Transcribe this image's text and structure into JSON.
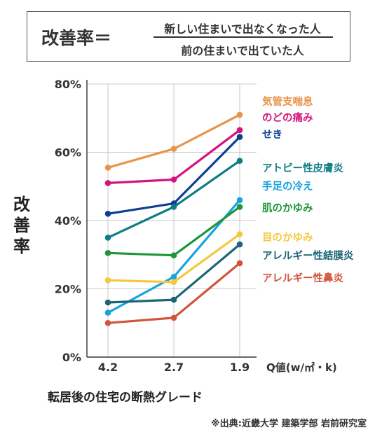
{
  "formula": {
    "lhs": "改善率＝",
    "numerator": "新しい住まいで出なくなった人",
    "denominator": "前の住まいで出ていた人"
  },
  "colors": {
    "axis": "#333333",
    "grid": "#bbbbbb"
  },
  "chart_data": {
    "type": "line",
    "title": "",
    "ylabel": "改善率",
    "xlabel": "転居後の住宅の断熱グレード",
    "x_unit_label": "Q値(w/㎡・k)",
    "categories": [
      "4.2",
      "2.7",
      "1.9"
    ],
    "ylim": [
      0,
      80
    ],
    "yticks": [
      0,
      20,
      40,
      60,
      80
    ],
    "ytick_labels": [
      "0%",
      "20%",
      "40%",
      "60%",
      "80%"
    ],
    "grid": true,
    "legend": "right",
    "series": [
      {
        "name": "気管支喘息",
        "color": "#E8944A",
        "values": [
          55.5,
          61,
          71
        ]
      },
      {
        "name": "のどの痛み",
        "color": "#D4147E",
        "values": [
          51,
          52,
          66.5
        ]
      },
      {
        "name": "せき",
        "color": "#0E3F93",
        "values": [
          42,
          45,
          64.5
        ]
      },
      {
        "name": "アトピー性皮膚炎",
        "color": "#0E7E84",
        "values": [
          35,
          44,
          57.5
        ]
      },
      {
        "name": "手足の冷え",
        "color": "#17A3E0",
        "values": [
          13,
          23.5,
          46
        ]
      },
      {
        "name": "肌のかゆみ",
        "color": "#1E9638",
        "values": [
          30.5,
          29.8,
          44
        ]
      },
      {
        "name": "目のかゆみ",
        "color": "#F5C83C",
        "values": [
          22.5,
          22,
          36
        ]
      },
      {
        "name": "アレルギー性結膜炎",
        "color": "#1C6577",
        "values": [
          16,
          16.8,
          33
        ]
      },
      {
        "name": "アレルギー性鼻炎",
        "color": "#D2543A",
        "values": [
          10,
          11.5,
          27.5
        ]
      }
    ]
  },
  "source": "※出典:近畿大学 建築学部 岩前研究室"
}
